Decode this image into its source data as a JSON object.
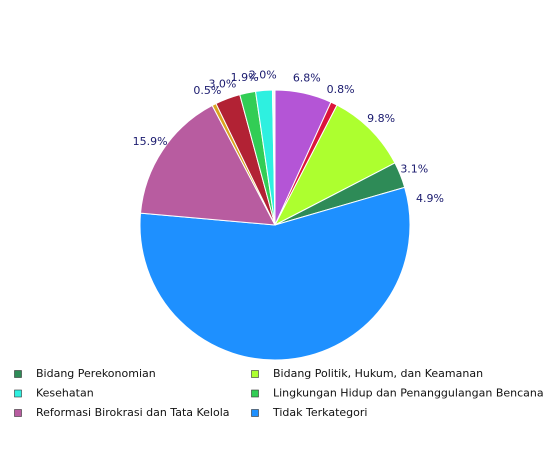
{
  "chart_data": {
    "type": "pie",
    "categories": [
      null,
      null,
      "Bidang Politik, Hukum, dan Keamanan",
      "Bidang Perekonomian",
      "Tidak Terkategori",
      "Reformasi Birokrasi dan Tata Kelola",
      null,
      null,
      "Lingkungan Hidup dan Penanggulangan Bencana",
      "Kesehatan",
      null
    ],
    "values": [
      6.8,
      0.8,
      9.8,
      3.1,
      55.9,
      15.9,
      0.5,
      3.0,
      1.9,
      2.0,
      0.3
    ],
    "value_labels": [
      "6.8%",
      "0.8%",
      "9.8%",
      "3.1%",
      null,
      "15.9%",
      "0.5%",
      "3.0%",
      "1.9%",
      "2.0%",
      null
    ],
    "colors": [
      "#b455d6",
      "#dc143c",
      "#adff2f",
      "#2e8b57",
      "#1e90ff",
      "#b85ca0",
      "#daa520",
      "#b22234",
      "#32cd55",
      "#2ef0e0",
      "#f8f8f8"
    ],
    "annotation": "4.9%"
  }
}
